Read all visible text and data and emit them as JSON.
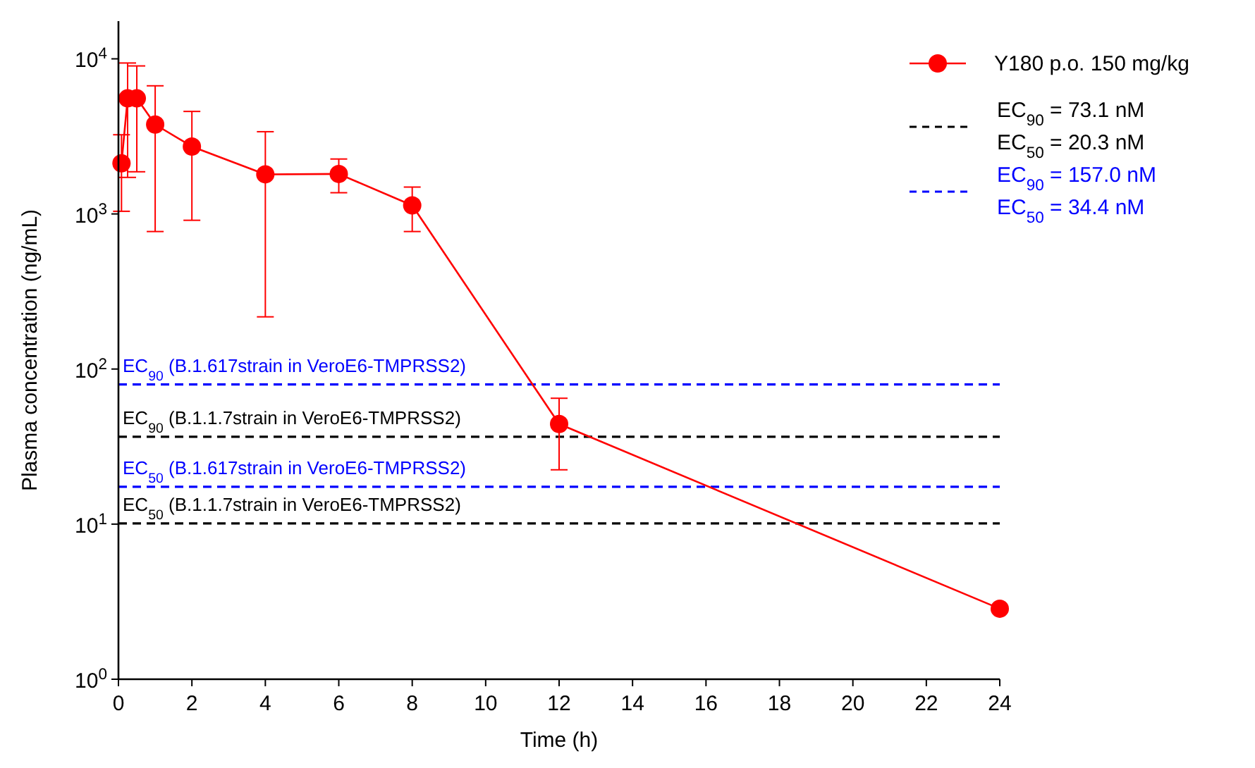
{
  "chart_data": {
    "type": "line",
    "xlabel": "Time (h)",
    "ylabel": "Plasma  concentration (ng/mL)",
    "log": "y",
    "xlim": [
      0,
      24
    ],
    "xticks": [
      0,
      2,
      4,
      6,
      8,
      10,
      12,
      14,
      16,
      18,
      20,
      22,
      24
    ],
    "ylim": [
      1,
      17500
    ],
    "yticks": [
      {
        "value": 1,
        "label": "10$^{0}$"
      },
      {
        "value": 10,
        "label": "10$^{1}$"
      },
      {
        "value": 100,
        "label": "10$^{2}$"
      },
      {
        "value": 1000,
        "label": "10$^{3}$"
      },
      {
        "value": 10000,
        "label": "10$^{4}$"
      }
    ],
    "grid": false,
    "legend": "top right",
    "marker": "circle",
    "line_style": "solid",
    "series": [
      {
        "name": "Y180 p.o. 150 mg/kg",
        "color": "#ff0000",
        "x": [
          0.083,
          0.25,
          0.5,
          1,
          2,
          4,
          6,
          8,
          12,
          24
        ],
        "values": [
          2120,
          5560,
          5560,
          3770,
          2720,
          1800,
          1810,
          1135,
          44.2,
          2.85
        ],
        "errors": [
          [
            1040,
            3240
          ],
          [
            1720,
            9400
          ],
          [
            1870,
            9000
          ],
          [
            770,
            6700
          ],
          [
            910,
            4580
          ],
          [
            217,
            3390
          ],
          [
            1370,
            2260
          ],
          [
            770,
            1490
          ],
          [
            22.4,
            64.8
          ],
          null
        ]
      }
    ],
    "ref_lines": [
      {
        "axis": "y",
        "value": 36.6,
        "label": "EC$_{90}$ (B.1.1.7strain in VeroE6-TMPRSS2)",
        "color": "#000000",
        "line_style": "dashed"
      },
      {
        "axis": "y",
        "value": 10.1,
        "label": "EC$_{50}$ (B.1.1.7strain in VeroE6-TMPRSS2)",
        "color": "#000000",
        "line_style": "dashed"
      },
      {
        "axis": "y",
        "value": 79.6,
        "label": "EC$_{90}$ (B.1.617strain in VeroE6-TMPRSS2)",
        "color": "#0000ff",
        "line_style": "dashed"
      },
      {
        "axis": "y",
        "value": 17.4,
        "label": "EC$_{50}$ (B.1.617strain in VeroE6-TMPRSS2)",
        "color": "#0000ff",
        "line_style": "dashed"
      }
    ],
    "annotations": [
      "EC$_{90}$ = 73.1 nM",
      "EC$_{50}$ = 20.3 nM",
      "EC$_{90}$ = 157.0 nM",
      "EC$_{50}$ = 34.4 nM"
    ]
  }
}
